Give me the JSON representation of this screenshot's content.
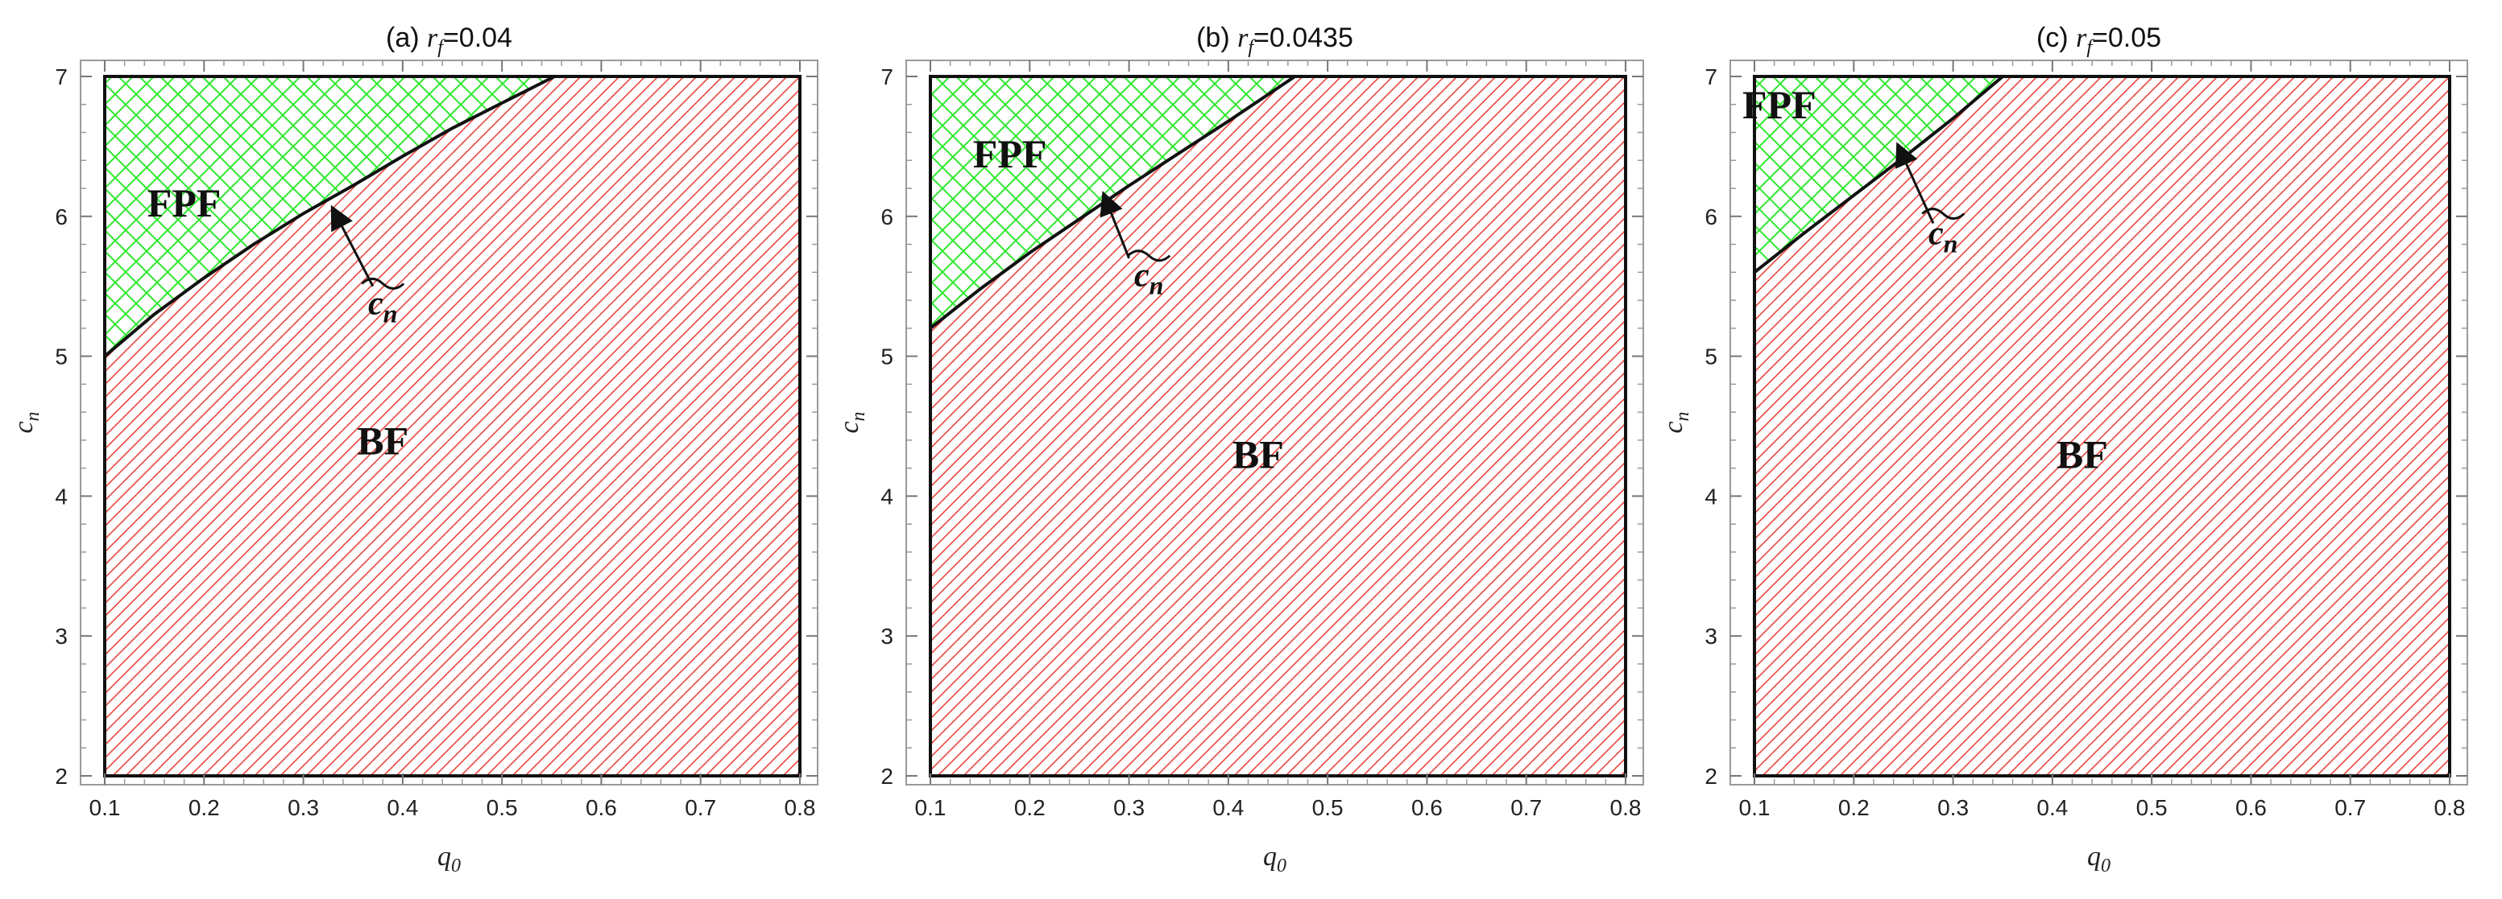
{
  "chart_data": [
    {
      "type": "area",
      "title_prefix": "(a) ",
      "title_var": "r",
      "title_sub": "f",
      "title_value": "=0.04",
      "xlabel_var": "q",
      "xlabel_sub": "0",
      "ylabel_var": "c",
      "ylabel_sub": "n",
      "xlim": [
        0.1,
        0.8
      ],
      "ylim": [
        2,
        7
      ],
      "xticks": [
        "0.1",
        "0.2",
        "0.3",
        "0.4",
        "0.5",
        "0.6",
        "0.7",
        "0.8"
      ],
      "yticks": [
        "2",
        "3",
        "4",
        "5",
        "6",
        "7"
      ],
      "boundary": {
        "x": [
          0.1,
          0.15,
          0.2,
          0.25,
          0.3,
          0.35,
          0.4,
          0.45,
          0.5,
          0.553
        ],
        "y": [
          5.0,
          5.3,
          5.56,
          5.8,
          6.02,
          6.22,
          6.43,
          6.63,
          6.81,
          7.0
        ]
      },
      "regions": [
        {
          "name": "FPF",
          "pattern": "crosshatch",
          "color": "#2ee82e",
          "position": "above"
        },
        {
          "name": "BF",
          "pattern": "diagonal",
          "color": "#e8473f",
          "position": "below"
        }
      ],
      "region_label_positions": {
        "FPF": [
          0.18,
          6.0
        ],
        "BF": [
          0.38,
          4.3
        ]
      },
      "curve_label": "c",
      "curve_label_pos": [
        0.38,
        5.3
      ],
      "arrow": {
        "from": [
          0.37,
          5.5
        ],
        "to": [
          0.33,
          6.05
        ]
      },
      "grid": false
    },
    {
      "type": "area",
      "title_prefix": "(b) ",
      "title_var": "r",
      "title_sub": "f",
      "title_value": "=0.0435",
      "xlabel_var": "q",
      "xlabel_sub": "0",
      "ylabel_var": "c",
      "ylabel_sub": "n",
      "xlim": [
        0.1,
        0.8
      ],
      "ylim": [
        2,
        7
      ],
      "xticks": [
        "0.1",
        "0.2",
        "0.3",
        "0.4",
        "0.5",
        "0.6",
        "0.7",
        "0.8"
      ],
      "yticks": [
        "2",
        "3",
        "4",
        "5",
        "6",
        "7"
      ],
      "boundary": {
        "x": [
          0.1,
          0.15,
          0.2,
          0.25,
          0.3,
          0.35,
          0.4,
          0.467
        ],
        "y": [
          5.2,
          5.48,
          5.74,
          5.98,
          6.22,
          6.45,
          6.68,
          7.0
        ]
      },
      "regions": [
        {
          "name": "FPF",
          "pattern": "crosshatch",
          "color": "#2ee82e",
          "position": "above"
        },
        {
          "name": "BF",
          "pattern": "diagonal",
          "color": "#e8473f",
          "position": "below"
        }
      ],
      "region_label_positions": {
        "FPF": [
          0.18,
          6.35
        ],
        "BF": [
          0.43,
          4.2
        ]
      },
      "curve_label": "c",
      "curve_label_pos": [
        0.32,
        5.5
      ],
      "arrow": {
        "from": [
          0.3,
          5.7
        ],
        "to": [
          0.275,
          6.15
        ]
      },
      "grid": false
    },
    {
      "type": "area",
      "title_prefix": "(c) ",
      "title_var": "r",
      "title_sub": "f",
      "title_value": "=0.05",
      "xlabel_var": "q",
      "xlabel_sub": "0",
      "ylabel_var": "c",
      "ylabel_sub": "n",
      "xlim": [
        0.1,
        0.8
      ],
      "ylim": [
        2,
        7
      ],
      "xticks": [
        "0.1",
        "0.2",
        "0.3",
        "0.4",
        "0.5",
        "0.6",
        "0.7",
        "0.8"
      ],
      "yticks": [
        "2",
        "3",
        "4",
        "5",
        "6",
        "7"
      ],
      "boundary": {
        "x": [
          0.1,
          0.15,
          0.2,
          0.25,
          0.3,
          0.35
        ],
        "y": [
          5.6,
          5.88,
          6.15,
          6.42,
          6.7,
          7.0
        ]
      },
      "regions": [
        {
          "name": "FPF",
          "pattern": "crosshatch",
          "color": "#2ee82e",
          "position": "above"
        },
        {
          "name": "BF",
          "pattern": "diagonal",
          "color": "#e8473f",
          "position": "below"
        }
      ],
      "region_label_positions": {
        "FPF": [
          0.125,
          6.7
        ],
        "BF": [
          0.43,
          4.2
        ]
      },
      "curve_label": "c",
      "curve_label_pos": [
        0.29,
        5.8
      ],
      "arrow": {
        "from": [
          0.28,
          5.95
        ],
        "to": [
          0.245,
          6.5
        ]
      },
      "grid": false
    }
  ]
}
